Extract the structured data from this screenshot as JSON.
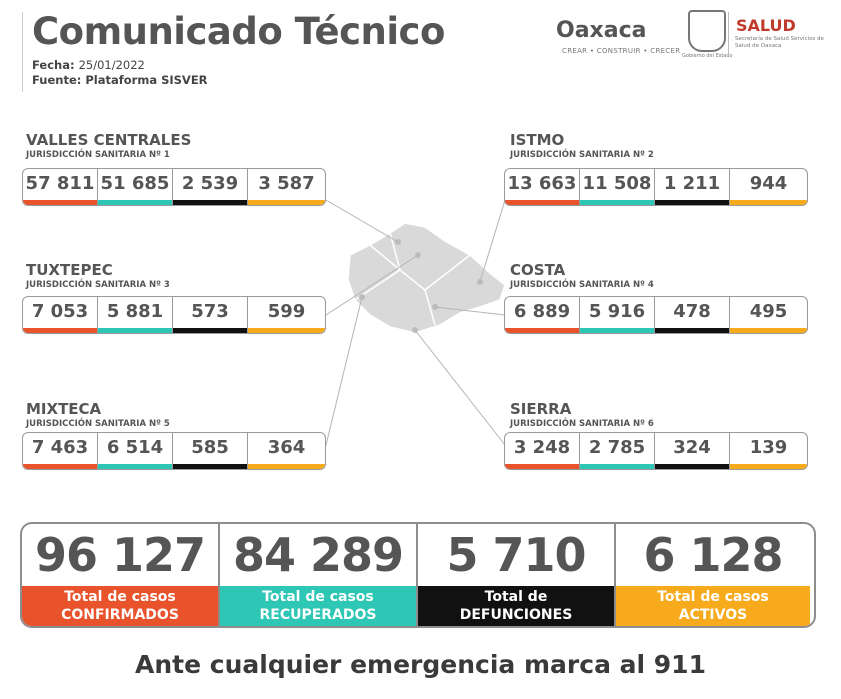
{
  "header": {
    "title": "Comunicado Técnico",
    "fecha_label": "Fecha:",
    "fecha_value": "25/01/2022",
    "fuente_label": "Fuente:",
    "fuente_value": "Plataforma SISVER",
    "logo_oaxaca": "Oaxaca",
    "logo_oaxaca_tagline": "CREAR • CONSTRUIR • CRECER",
    "seal_text": "Gobierno del Estado",
    "salud": "SALUD",
    "salud_sub": "Secretaría de Salud Servicios de Salud de Oaxaca"
  },
  "colors": {
    "confirmados": "#e8532b",
    "recuperados": "#2ec6b4",
    "defunciones": "#111111",
    "activos": "#f7ab1c"
  },
  "regions": [
    {
      "name": "VALLES CENTRALES",
      "jurisdiccion": "JURISDICCIÓN SANITARIA Nº 1",
      "values": [
        "57 811",
        "51 685",
        "2 539",
        "3 587"
      ]
    },
    {
      "name": "ISTMO",
      "jurisdiccion": "JURISDICCIÓN SANITARIA Nº 2",
      "values": [
        "13 663",
        "11 508",
        "1 211",
        "944"
      ]
    },
    {
      "name": "TUXTEPEC",
      "jurisdiccion": "JURISDICCIÓN SANITARIA Nº 3",
      "values": [
        "7 053",
        "5 881",
        "573",
        "599"
      ]
    },
    {
      "name": "COSTA",
      "jurisdiccion": "JURISDICCIÓN SANITARIA Nº 4",
      "values": [
        "6 889",
        "5 916",
        "478",
        "495"
      ]
    },
    {
      "name": "MIXTECA",
      "jurisdiccion": "JURISDICCIÓN SANITARIA Nº 5",
      "values": [
        "7 463",
        "6 514",
        "585",
        "364"
      ]
    },
    {
      "name": "SIERRA",
      "jurisdiccion": "JURISDICCIÓN SANITARIA Nº 6",
      "values": [
        "3 248",
        "2 785",
        "324",
        "139"
      ]
    }
  ],
  "totals": [
    {
      "value": "96 127",
      "line1": "Total de casos",
      "line2": "CONFIRMADOS"
    },
    {
      "value": "84 289",
      "line1": "Total de casos",
      "line2": "RECUPERADOS"
    },
    {
      "value": "5 710",
      "line1": "Total de",
      "line2": "DEFUNCIONES"
    },
    {
      "value": "6 128",
      "line1": "Total de casos",
      "line2": "ACTIVOS"
    }
  ],
  "footer": "Ante cualquier emergencia marca al 911"
}
